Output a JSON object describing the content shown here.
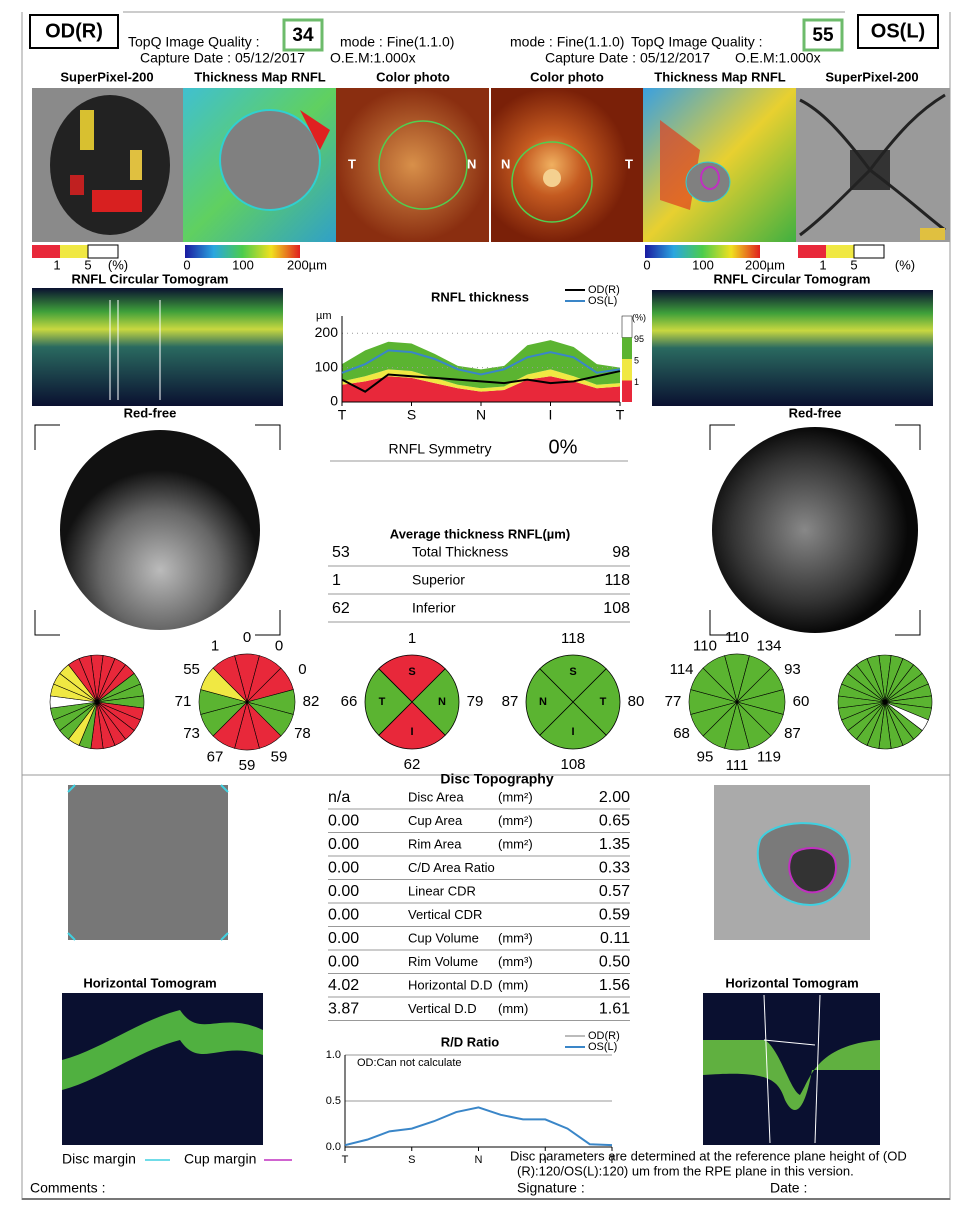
{
  "header": {
    "od": {
      "eye": "OD(R)",
      "quality_label": "TopQ Image Quality :",
      "quality": 34,
      "mode": "mode : Fine(1.1.0)",
      "capture_date": "Capture Date : 05/12/2017",
      "oem": "O.E.M:1.000x"
    },
    "os": {
      "eye": "OS(L)",
      "quality_label": "TopQ Image Quality :",
      "quality": 55,
      "mode": "mode : Fine(1.1.0)",
      "capture_date": "Capture Date : 05/12/2017",
      "oem": "O.E.M:1.000x"
    }
  },
  "image_labels": [
    "SuperPixel-200",
    "Thickness Map RNFL",
    "Color photo",
    "Color photo",
    "Thickness Map RNFL",
    "SuperPixel-200"
  ],
  "photo_markers": {
    "od": [
      "T",
      "N"
    ],
    "os": [
      "N",
      "T"
    ]
  },
  "scales": {
    "superpixel": [
      "1",
      "5",
      "(%)"
    ],
    "thickness": [
      "0",
      "100",
      "200µm"
    ]
  },
  "tomogram_title": "RNFL Circular Tomogram",
  "red_free": "Red-free",
  "chart_data": [
    {
      "type": "line",
      "title": "RNFL thickness",
      "y_label": "µm",
      "x": [
        0,
        30,
        60,
        90,
        120,
        150,
        180,
        210,
        240,
        270,
        300,
        330,
        360
      ],
      "xlim": [
        0,
        360
      ],
      "xticks": [
        {
          "value": 0,
          "label": "T"
        },
        {
          "value": 90,
          "label": "S"
        },
        {
          "value": 180,
          "label": "N"
        },
        {
          "value": 270,
          "label": "I"
        },
        {
          "value": 360,
          "label": "T"
        }
      ],
      "ylim": [
        0,
        250
      ],
      "yticks": [
        0,
        100,
        200
      ],
      "grid": true,
      "series": [
        {
          "name": "OD(R)",
          "color": "#000000",
          "values": [
            65,
            30,
            80,
            75,
            70,
            65,
            60,
            55,
            65,
            55,
            60,
            75,
            90
          ]
        },
        {
          "name": "OS(L)",
          "color": "#3a86c8",
          "values": [
            85,
            110,
            150,
            145,
            125,
            95,
            80,
            95,
            130,
            145,
            130,
            85,
            95
          ]
        }
      ],
      "percentile_label": "(%)",
      "bands": [
        {
          "percentile": "1",
          "color": "#e8283a",
          "values": [
            50,
            60,
            75,
            70,
            55,
            40,
            30,
            35,
            65,
            75,
            60,
            40,
            45
          ]
        },
        {
          "percentile": "5",
          "color": "#f0e843",
          "values": [
            60,
            75,
            95,
            90,
            70,
            50,
            40,
            45,
            80,
            95,
            75,
            50,
            55
          ]
        },
        {
          "percentile": "95",
          "color": "#5bb431",
          "values": [
            110,
            150,
            175,
            170,
            140,
            105,
            95,
            105,
            165,
            180,
            160,
            110,
            100
          ]
        }
      ]
    },
    {
      "type": "line",
      "title": "R/D Ratio",
      "annotation": "OD:Can not calculate",
      "x": [
        0,
        30,
        60,
        90,
        120,
        150,
        180,
        210,
        240,
        270,
        300,
        330,
        360
      ],
      "xlim": [
        0,
        360
      ],
      "xticks": [
        {
          "value": 0,
          "label": "T"
        },
        {
          "value": 90,
          "label": "S"
        },
        {
          "value": 180,
          "label": "N"
        },
        {
          "value": 270,
          "label": "I"
        },
        {
          "value": 360,
          "label": "T"
        }
      ],
      "ylim": [
        0,
        1
      ],
      "yticks": [
        {
          "value": 0,
          "label": "0.0"
        },
        {
          "value": 0.5,
          "label": "0.5"
        },
        {
          "value": 1,
          "label": "1.0"
        }
      ],
      "grid": true,
      "series": [
        {
          "name": "OD(R)",
          "color": "#bbbbbb",
          "values": [
            null,
            null,
            null,
            null,
            null,
            null,
            null,
            null,
            null,
            null,
            null,
            null,
            null
          ]
        },
        {
          "name": "OS(L)",
          "color": "#3a86c8",
          "values": [
            0.02,
            0.08,
            0.17,
            0.2,
            0.28,
            0.38,
            0.43,
            0.35,
            0.3,
            0.3,
            0.2,
            0.03,
            0.02
          ]
        }
      ]
    }
  ],
  "symmetry": {
    "label": "RNFL Symmetry",
    "value": "0%"
  },
  "average_thickness": {
    "title": "Average thickness RNFL(µm)",
    "rows": [
      {
        "od": 53,
        "label": "Total Thickness",
        "os": 98
      },
      {
        "od": 1,
        "label": "Superior",
        "os": 118
      },
      {
        "od": 62,
        "label": "Inferior",
        "os": 108
      }
    ]
  },
  "sector_maps": {
    "od": {
      "colors": [
        "#e8283a",
        "#e8283a",
        "#e8283a",
        "#e8283a",
        "#5bb431",
        "#5bb431",
        "#5bb431",
        "#e8283a",
        "#e8283a",
        "#e8283a",
        "#e8283a",
        "#e8283a",
        "#e8283a",
        "#5bb431",
        "#f0e843",
        "#5bb431",
        "#5bb431",
        "#5bb431",
        "#ffffff",
        "#f0e843",
        "#f0e843",
        "#f0e843",
        "#e8283a",
        "#e8283a"
      ]
    },
    "os": {
      "colors": [
        "#5bb431",
        "#5bb431",
        "#5bb431",
        "#5bb431",
        "#5bb431",
        "#5bb431",
        "#5bb431",
        "#5bb431",
        "#ffffff",
        "#5bb431",
        "#5bb431",
        "#5bb431",
        "#5bb431",
        "#5bb431",
        "#5bb431",
        "#5bb431",
        "#5bb431",
        "#5bb431",
        "#5bb431",
        "#5bb431",
        "#5bb431",
        "#5bb431",
        "#5bb431",
        "#5bb431"
      ]
    }
  },
  "clock_hours": {
    "od": {
      "values": [
        0,
        0,
        0,
        82,
        78,
        59,
        59,
        67,
        73,
        71,
        55,
        1
      ],
      "colors": [
        "#e8283a",
        "#e8283a",
        "#e8283a",
        "#5bb431",
        "#5bb431",
        "#e8283a",
        "#e8283a",
        "#e8283a",
        "#5bb431",
        "#5bb431",
        "#f0e843",
        "#e8283a"
      ]
    },
    "os": {
      "values": [
        110,
        134,
        93,
        60,
        87,
        119,
        111,
        95,
        68,
        77,
        114,
        110
      ],
      "colors": [
        "#5bb431",
        "#5bb431",
        "#5bb431",
        "#5bb431",
        "#5bb431",
        "#5bb431",
        "#5bb431",
        "#5bb431",
        "#5bb431",
        "#5bb431",
        "#5bb431",
        "#5bb431"
      ]
    }
  },
  "quadrants": {
    "od": {
      "letters": [
        "S",
        "N",
        "I",
        "T"
      ],
      "values": [
        1,
        79,
        62,
        66
      ],
      "colors": [
        "#e8283a",
        "#5bb431",
        "#e8283a",
        "#5bb431"
      ]
    },
    "os": {
      "letters": [
        "S",
        "T",
        "I",
        "N"
      ],
      "values": [
        118,
        80,
        108,
        87
      ],
      "colors": [
        "#5bb431",
        "#5bb431",
        "#5bb431",
        "#5bb431"
      ]
    }
  },
  "disc_topography": {
    "title": "Disc Topography",
    "rows": [
      {
        "od": "n/a",
        "label": "Disc Area",
        "unit": "(mm²)",
        "os": "2.00"
      },
      {
        "od": "0.00",
        "label": "Cup Area",
        "unit": "(mm²)",
        "os": "0.65"
      },
      {
        "od": "0.00",
        "label": "Rim Area",
        "unit": "(mm²)",
        "os": "1.35"
      },
      {
        "od": "0.00",
        "label": "C/D Area Ratio",
        "os": "0.33"
      },
      {
        "od": "0.00",
        "label": "Linear CDR",
        "os": "0.57"
      },
      {
        "od": "0.00",
        "label": "Vertical CDR",
        "os": "0.59"
      },
      {
        "od": "0.00",
        "label": "Cup Volume",
        "unit": "(mm³)",
        "os": "0.11"
      },
      {
        "od": "0.00",
        "label": "Rim Volume",
        "unit": "(mm³)",
        "os": "0.50"
      },
      {
        "od": "4.02",
        "label": "Horizontal D.D",
        "unit": "(mm)",
        "os": "1.56"
      },
      {
        "od": "3.87",
        "label": "Vertical D.D",
        "unit": "(mm)",
        "os": "1.61"
      }
    ]
  },
  "horizontal_tomogram": "Horizontal Tomogram",
  "margins": {
    "disc": "Disc margin",
    "cup": "Cup margin"
  },
  "note": [
    "Disc parameters are determined at the reference plane height of (OD",
    "(R):120/OS(L):120) um from the RPE plane in this version."
  ],
  "footer": {
    "comments": "Comments :",
    "signature": "Signature :",
    "date": "Date :"
  }
}
